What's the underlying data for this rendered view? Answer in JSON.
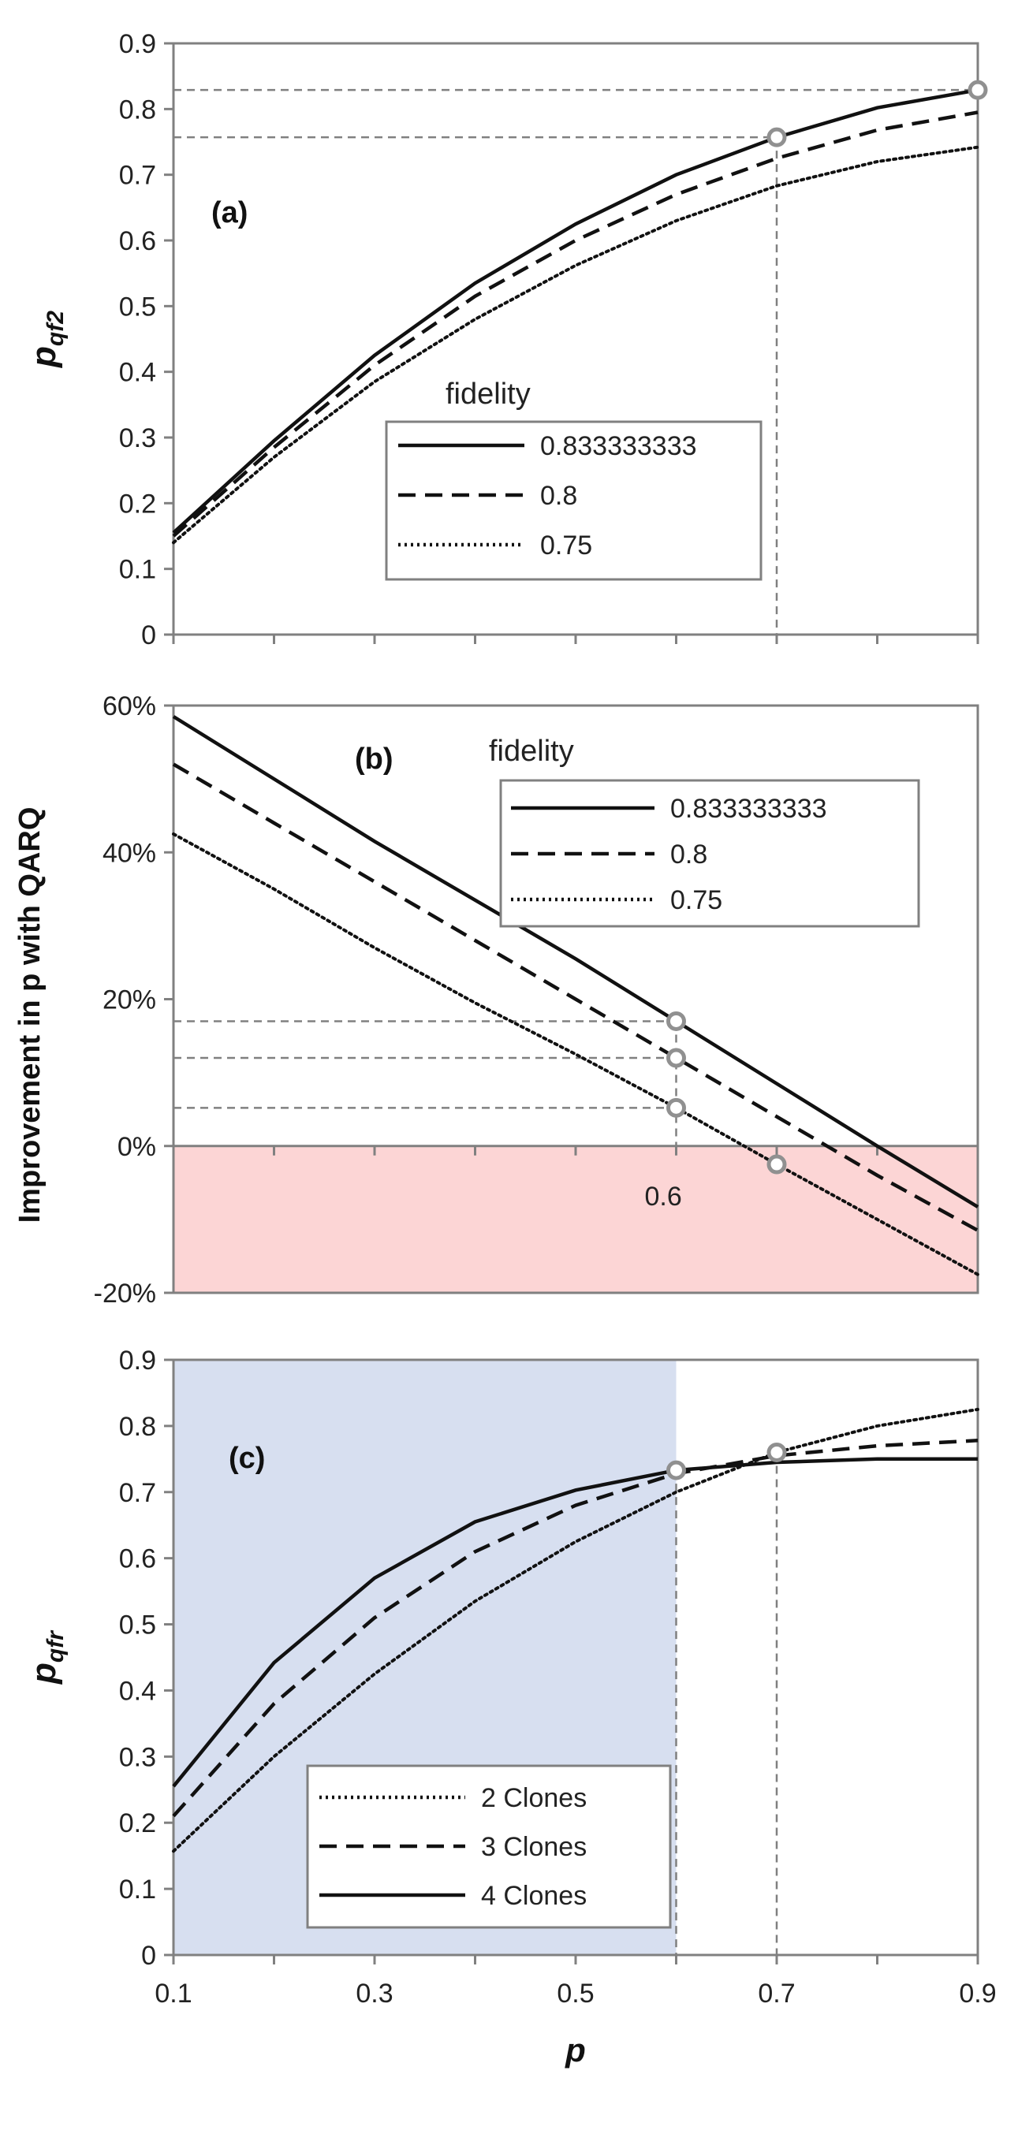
{
  "chart_data": [
    {
      "type": "line",
      "panel": "(a)",
      "x": [
        0.1,
        0.2,
        0.3,
        0.4,
        0.5,
        0.6,
        0.7,
        0.8,
        0.9
      ],
      "ylabel_main": "p",
      "ylabel_sub": "qf2",
      "ylim": [
        0,
        0.9
      ],
      "yticks": [
        "0",
        "0.1",
        "0.2",
        "0.3",
        "0.4",
        "0.5",
        "0.6",
        "0.7",
        "0.8",
        "0.9"
      ],
      "legend_title": "fidelity",
      "legend_placement": "center",
      "series": [
        {
          "name": "0.833333333",
          "style": "solid",
          "values": [
            0.155,
            0.295,
            0.425,
            0.535,
            0.625,
            0.7,
            0.757,
            0.802,
            0.829
          ]
        },
        {
          "name": "0.8",
          "style": "dashed",
          "values": [
            0.15,
            0.285,
            0.41,
            0.515,
            0.6,
            0.67,
            0.725,
            0.768,
            0.795
          ]
        },
        {
          "name": "0.75",
          "style": "dotted",
          "values": [
            0.14,
            0.27,
            0.385,
            0.48,
            0.562,
            0.63,
            0.683,
            0.72,
            0.742
          ]
        }
      ],
      "markers": [
        {
          "x": 0.7,
          "y": 0.757
        },
        {
          "x": 0.9,
          "y": 0.829
        }
      ]
    },
    {
      "type": "line",
      "panel": "(b)",
      "x": [
        0.1,
        0.2,
        0.3,
        0.4,
        0.5,
        0.6,
        0.7,
        0.8,
        0.9
      ],
      "ylabel": "Improvement in p with QARQ",
      "ylim": [
        -20,
        60
      ],
      "yticks": [
        "-20%",
        "0%",
        "20%",
        "40%",
        "60%"
      ],
      "legend_title": "fidelity",
      "legend_placement": "top-right",
      "shaded_negative_region": true,
      "annotation": "0.6",
      "series": [
        {
          "name": "0.833333333",
          "style": "solid",
          "values": [
            58.5,
            50.0,
            41.5,
            33.5,
            25.5,
            17.0,
            8.5,
            0.0,
            -8.3
          ]
        },
        {
          "name": "0.8",
          "style": "dashed",
          "values": [
            52.0,
            44.0,
            36.0,
            28.0,
            20.0,
            12.0,
            4.0,
            -4.0,
            -11.5
          ]
        },
        {
          "name": "0.75",
          "style": "dotted",
          "values": [
            42.5,
            35.0,
            27.0,
            19.5,
            12.5,
            5.2,
            -2.5,
            -10.0,
            -17.5
          ]
        }
      ],
      "markers": [
        {
          "x": 0.6,
          "y": 17.0
        },
        {
          "x": 0.6,
          "y": 12.0
        },
        {
          "x": 0.6,
          "y": 5.2
        },
        {
          "x": 0.7,
          "y": -2.5
        }
      ]
    },
    {
      "type": "line",
      "panel": "(c)",
      "x": [
        0.1,
        0.2,
        0.3,
        0.4,
        0.5,
        0.6,
        0.7,
        0.8,
        0.9
      ],
      "xlabel": "p",
      "xticks": [
        "0.1",
        "0.3",
        "0.5",
        "0.7",
        "0.9"
      ],
      "ylabel_main": "p",
      "ylabel_sub": "qfr",
      "ylim": [
        0,
        0.9
      ],
      "yticks": [
        "0",
        "0.1",
        "0.2",
        "0.3",
        "0.4",
        "0.5",
        "0.6",
        "0.7",
        "0.8",
        "0.9"
      ],
      "legend_placement": "bottom-center",
      "shaded_region_x": [
        0.1,
        0.6
      ],
      "series": [
        {
          "name": "2 Clones",
          "style": "dotted",
          "values": [
            0.157,
            0.3,
            0.425,
            0.535,
            0.625,
            0.7,
            0.76,
            0.8,
            0.825
          ]
        },
        {
          "name": "3 Clones",
          "style": "dashed",
          "values": [
            0.21,
            0.38,
            0.51,
            0.61,
            0.68,
            0.728,
            0.755,
            0.77,
            0.778
          ]
        },
        {
          "name": "4 Clones",
          "style": "solid",
          "values": [
            0.255,
            0.442,
            0.57,
            0.655,
            0.703,
            0.733,
            0.745,
            0.75,
            0.75
          ]
        }
      ],
      "markers": [
        {
          "x": 0.6,
          "y": 0.733
        },
        {
          "x": 0.7,
          "y": 0.76
        }
      ]
    }
  ],
  "colors": {
    "line": "#111111",
    "frame": "#808080",
    "guide": "#808080",
    "marker_stroke": "#909090",
    "neg_region": "#fcd5d5",
    "blue_region": "#d7dff0"
  }
}
